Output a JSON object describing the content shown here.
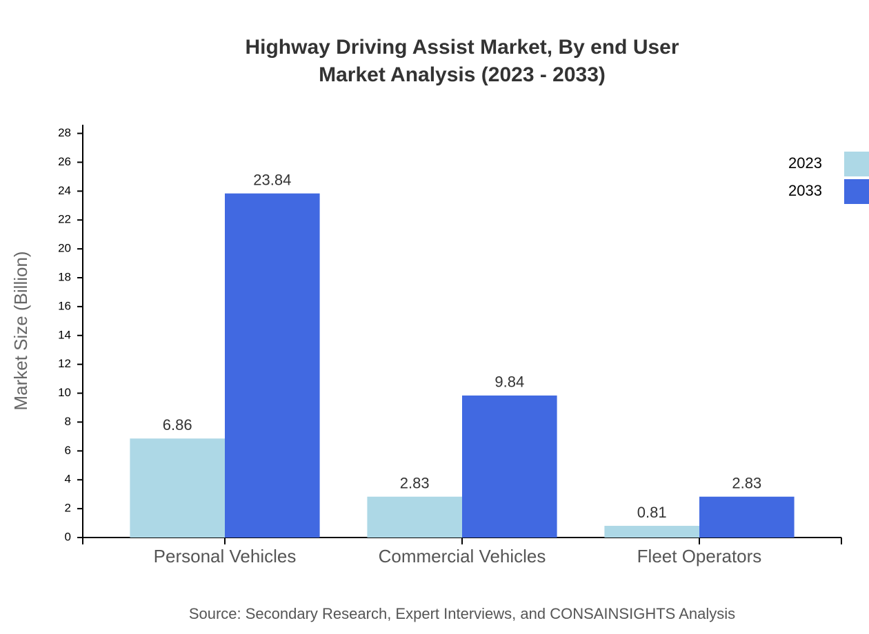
{
  "chart_data": {
    "type": "bar",
    "title": "Highway Driving Assist Market, By end User",
    "subtitle": "Market Analysis (2023 - 2033)",
    "y_label": "Market Size (Billion)",
    "source": "Source: Secondary Research, Expert Interviews, and CONSAINSIGHTS Analysis",
    "categories": [
      "Personal Vehicles",
      "Commercial Vehicles",
      "Fleet Operators"
    ],
    "series": [
      {
        "name": "2023",
        "color": "#add8e6",
        "values": [
          6.86,
          2.83,
          0.81
        ]
      },
      {
        "name": "2033",
        "color": "#4169e1",
        "values": [
          23.84,
          9.84,
          2.83
        ]
      }
    ],
    "ylim": [
      0,
      28.6
    ],
    "yticks": [
      0,
      2,
      4,
      6,
      8,
      10,
      12,
      14,
      16,
      18,
      20,
      22,
      24,
      26,
      28
    ],
    "grid": false,
    "legend": "top-right"
  }
}
